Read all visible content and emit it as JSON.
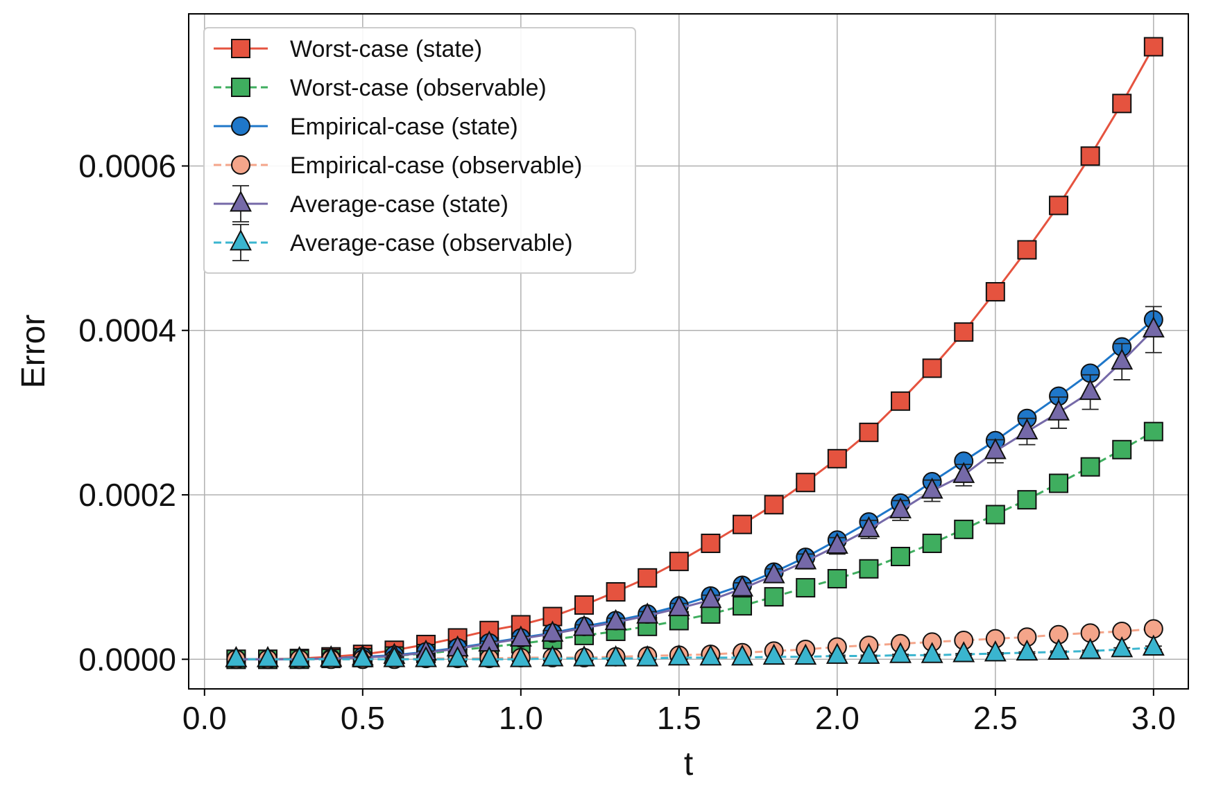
{
  "chart_data": {
    "type": "line",
    "title": "",
    "xlabel": "t",
    "ylabel": "Error",
    "xlim": [
      -0.05,
      3.11
    ],
    "ylim": [
      -3.6e-05,
      0.000785
    ],
    "xticks": [
      0.0,
      0.5,
      1.0,
      1.5,
      2.0,
      2.5,
      3.0
    ],
    "xtick_labels": [
      "0.0",
      "0.5",
      "1.0",
      "1.5",
      "2.0",
      "2.5",
      "3.0"
    ],
    "yticks": [
      0.0,
      0.0002,
      0.0004,
      0.0006
    ],
    "ytick_labels": [
      "0.0000",
      "0.0002",
      "0.0004",
      "0.0006"
    ],
    "grid": true,
    "legend_position": "top-left",
    "x": [
      0.1,
      0.2,
      0.3,
      0.4,
      0.5,
      0.6,
      0.7,
      0.8,
      0.9,
      1.0,
      1.1,
      1.2,
      1.3,
      1.4,
      1.5,
      1.6,
      1.7,
      1.8,
      1.9,
      2.0,
      2.1,
      2.2,
      2.3,
      2.4,
      2.5,
      2.6,
      2.7,
      2.8,
      2.9,
      3.0
    ],
    "series": [
      {
        "name": "Worst-case (state)",
        "color": "#e5533f",
        "marker": "square",
        "linestyle": "solid",
        "values": [
          0.0,
          0.0,
          1e-06,
          3e-06,
          6e-06,
          1.1e-05,
          1.8e-05,
          2.6e-05,
          3.5e-05,
          4.2e-05,
          5.2e-05,
          6.6e-05,
          8.2e-05,
          9.9e-05,
          0.000119,
          0.000141,
          0.000164,
          0.000188,
          0.000215,
          0.000244,
          0.000276,
          0.000314,
          0.000354,
          0.000398,
          0.000447,
          0.000498,
          0.000552,
          0.000612,
          0.000676,
          0.000745
        ]
      },
      {
        "name": "Worst-case (observable)",
        "color": "#3fae5f",
        "marker": "square",
        "linestyle": "dashed",
        "values": [
          0.0,
          0.0,
          0.0,
          1e-06,
          2e-06,
          4e-06,
          7e-06,
          1.1e-05,
          1.5e-05,
          1.9e-05,
          2.4e-05,
          2.9e-05,
          3.4e-05,
          4e-05,
          4.7e-05,
          5.5e-05,
          6.5e-05,
          7.6e-05,
          8.7e-05,
          9.8e-05,
          0.00011,
          0.000125,
          0.000141,
          0.000158,
          0.000176,
          0.000194,
          0.000214,
          0.000234,
          0.000255,
          0.000277
        ]
      },
      {
        "name": "Empirical-case (state)",
        "color": "#1f77c9",
        "marker": "circle",
        "linestyle": "solid",
        "values": [
          0.0,
          0.0,
          0.0,
          1e-06,
          3e-06,
          5e-06,
          9e-06,
          1.4e-05,
          2e-05,
          2.6e-05,
          3.2e-05,
          4e-05,
          4.7e-05,
          5.5e-05,
          6.5e-05,
          7.7e-05,
          9e-05,
          0.000106,
          0.000124,
          0.000145,
          0.000167,
          0.00019,
          0.000216,
          0.000241,
          0.000266,
          0.000293,
          0.00032,
          0.000348,
          0.00038,
          0.000413
        ]
      },
      {
        "name": "Empirical-case (observable)",
        "color": "#f4a58a",
        "marker": "circle",
        "linestyle": "dashed",
        "values": [
          0.0,
          0.0,
          0.0,
          0.0,
          0.0,
          0.0,
          1e-06,
          1e-06,
          1e-06,
          2e-06,
          2e-06,
          2e-06,
          3e-06,
          4e-06,
          5e-06,
          6e-06,
          8e-06,
          1e-05,
          1.2e-05,
          1.5e-05,
          1.7e-05,
          1.9e-05,
          2.1e-05,
          2.3e-05,
          2.5e-05,
          2.7e-05,
          3e-05,
          3.2e-05,
          3.4e-05,
          3.7e-05
        ]
      },
      {
        "name": "Average-case (state)",
        "color": "#7569a8",
        "marker": "triangle",
        "linestyle": "solid",
        "values": [
          0.0,
          0.0,
          0.0,
          1e-06,
          2e-06,
          4e-06,
          8e-06,
          1.3e-05,
          1.9e-05,
          2.5e-05,
          3.1e-05,
          3.8e-05,
          4.5e-05,
          5.3e-05,
          6.2e-05,
          7.2e-05,
          8.6e-05,
          0.000102,
          0.000119,
          0.000138,
          0.000158,
          0.000181,
          0.000205,
          0.000224,
          0.000253,
          0.000277,
          0.0003,
          0.000325,
          0.000362,
          0.000401
        ],
        "error": [
          0.0,
          0.0,
          0.0,
          0.0,
          1e-06,
          1e-06,
          2e-06,
          2e-06,
          3e-06,
          3e-06,
          4e-06,
          4e-06,
          5e-06,
          5e-06,
          6e-06,
          6e-06,
          7e-06,
          8e-06,
          9e-06,
          1e-05,
          1.1e-05,
          1.2e-05,
          1.3e-05,
          1.3e-05,
          1.4e-05,
          1.6e-05,
          1.9e-05,
          2.1e-05,
          2.2e-05,
          2.8e-05
        ]
      },
      {
        "name": "Average-case (observable)",
        "color": "#3ab5cf",
        "marker": "triangle",
        "linestyle": "dashed",
        "values": [
          0.0,
          0.0,
          0.0,
          0.0,
          0.0,
          0.0,
          0.0,
          0.0,
          0.0,
          0.0,
          1e-06,
          1e-06,
          1e-06,
          1e-06,
          2e-06,
          2e-06,
          2e-06,
          3e-06,
          3e-06,
          4e-06,
          4e-06,
          5e-06,
          5e-06,
          6e-06,
          7e-06,
          8e-06,
          9e-06,
          1e-05,
          1.2e-05,
          1.4e-05
        ],
        "error": [
          0.0,
          0.0,
          0.0,
          0.0,
          0.0,
          0.0,
          0.0,
          0.0,
          0.0,
          0.0,
          0.0,
          0.0,
          0.0,
          0.0,
          0.0,
          0.0,
          0.0,
          0.0,
          0.0,
          1e-06,
          1e-06,
          1e-06,
          1e-06,
          1e-06,
          1e-06,
          1e-06,
          1e-06,
          1e-06,
          2e-06,
          2e-06
        ]
      }
    ]
  }
}
